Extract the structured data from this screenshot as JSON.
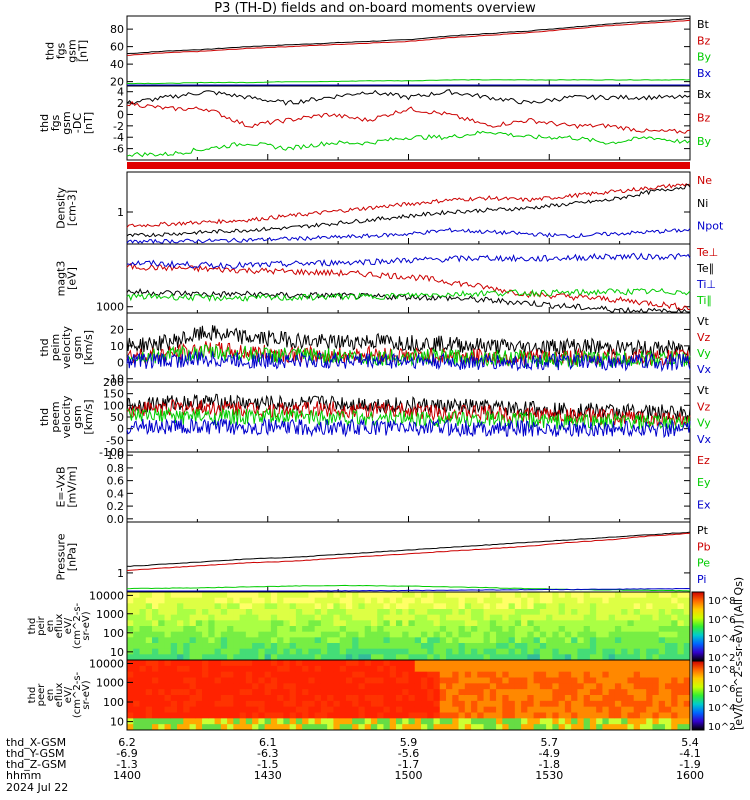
{
  "title": "P3 (TH-D) fields and on-board moments overview",
  "chart_data": {
    "type": "line",
    "xaxis": {
      "rows": [
        {
          "name": "thd_X-GSM",
          "values": [
            "6.2",
            "6.1",
            "5.9",
            "5.7",
            "5.4"
          ]
        },
        {
          "name": "thd_Y-GSM",
          "values": [
            "-6.9",
            "-6.3",
            "-5.6",
            "-4.9",
            "-4.1"
          ]
        },
        {
          "name": "thd_Z-GSM",
          "values": [
            "-1.3",
            "-1.5",
            "-1.7",
            "-1.8",
            "-1.9"
          ]
        },
        {
          "name": "hhmm",
          "values": [
            "1400",
            "1430",
            "1500",
            "1530",
            "1600"
          ]
        }
      ],
      "date": "2024 Jul 22"
    },
    "panels": [
      {
        "id": "fgs-gsm-mag",
        "ylabel": [
          "thd",
          "fgs",
          "gsm",
          "[nT]"
        ],
        "yticks": [
          "20",
          "40",
          "60",
          "80"
        ],
        "ylim": [
          15,
          95
        ],
        "series": [
          {
            "name": "Bt",
            "color": "#000000",
            "values": [
              52,
              55,
              57,
              60,
              62,
              64,
              66,
              68,
              72,
              75,
              78,
              82,
              86,
              89,
              92
            ]
          },
          {
            "name": "Bz",
            "color": "#cc0000",
            "values": [
              50,
              53,
              55,
              58,
              60,
              62,
              64,
              66,
              70,
              73,
              76,
              80,
              84,
              87,
              90
            ]
          },
          {
            "name": "By",
            "color": "#00cc00",
            "values": [
              18,
              18,
              19,
              19,
              20,
              20,
              21,
              21,
              22,
              22,
              22,
              22,
              22,
              22,
              22
            ]
          },
          {
            "name": "Bx",
            "color": "#0000cc",
            "values": [
              14,
              14,
              14,
              14,
              14,
              14,
              14,
              14,
              14,
              14,
              14,
              14,
              14,
              14,
              14
            ]
          }
        ]
      },
      {
        "id": "fgs-gsm-dc",
        "ylabel": [
          "thd",
          "fgs",
          "gsm",
          "-DC",
          "[nT]"
        ],
        "yticks": [
          "-6",
          "-4",
          "-2",
          "0",
          "2",
          "4"
        ],
        "ylim": [
          -8,
          5
        ],
        "series": [
          {
            "name": "Bx",
            "color": "#000000",
            "values": [
              2,
              3,
              4,
              3,
              2,
              3,
              4,
              3,
              4,
              3,
              2,
              3,
              3,
              3,
              3
            ]
          },
          {
            "name": "Bz",
            "color": "#cc0000",
            "values": [
              2,
              1,
              1,
              -2,
              -1,
              0,
              -1,
              1,
              0,
              -2,
              -1,
              -2,
              -2,
              -3,
              -3
            ]
          },
          {
            "name": "By",
            "color": "#00cc00",
            "values": [
              -7,
              -7,
              -6,
              -5,
              -6,
              -5,
              -5,
              -4,
              -4,
              -3,
              -4,
              -4,
              -5,
              -4,
              -5
            ]
          }
        ]
      },
      {
        "id": "density",
        "ylabel": [
          "Density",
          "[cm-3]"
        ],
        "yticks": [
          "1"
        ],
        "ylim": [
          0.2,
          2
        ],
        "series": [
          {
            "name": "Ne",
            "color": "#cc0000",
            "values": [
              0.65,
              0.7,
              0.75,
              0.8,
              0.9,
              1.0,
              1.1,
              1.2,
              1.3,
              1.35,
              1.3,
              1.4,
              1.5,
              1.6,
              1.7
            ]
          },
          {
            "name": "Ni",
            "color": "#000000",
            "values": [
              0.4,
              0.45,
              0.5,
              0.55,
              0.6,
              0.7,
              0.8,
              0.9,
              1.0,
              1.05,
              1.1,
              1.2,
              1.3,
              1.5,
              1.65
            ]
          },
          {
            "name": "Npot",
            "color": "#0000cc",
            "values": [
              0.25,
              0.27,
              0.28,
              0.3,
              0.33,
              0.36,
              0.4,
              0.45,
              0.55,
              0.5,
              0.45,
              0.4,
              0.45,
              0.5,
              0.55
            ]
          }
        ]
      },
      {
        "id": "temperature",
        "ylabel": [
          "magt3",
          "[eV]"
        ],
        "yticks": [
          "1000"
        ],
        "ylim": [
          500,
          6000
        ],
        "series": [
          {
            "name": "Te⊥",
            "color": "#cc0000",
            "values": [
              4200,
              4100,
              4000,
              3900,
              3800,
              3700,
              3600,
              3400,
              3000,
              2500,
              2000,
              1800,
              1600,
              1300,
              900
            ]
          },
          {
            "name": "Te∥",
            "color": "#000000",
            "values": [
              2200,
              2100,
              2000,
              2000,
              1900,
              1900,
              1800,
              1800,
              1700,
              1500,
              1300,
              1000,
              800,
              650,
              550
            ]
          },
          {
            "name": "Ti⊥",
            "color": "#0000cc",
            "values": [
              4500,
              4400,
              4300,
              4300,
              4400,
              4500,
              4600,
              4700,
              4800,
              4900,
              4800,
              4900,
              5000,
              5000,
              5000
            ]
          },
          {
            "name": "Ti∥",
            "color": "#00cc00",
            "values": [
              1800,
              1800,
              1700,
              1700,
              1700,
              1800,
              1800,
              1900,
              2000,
              2100,
              2100,
              2100,
              2200,
              2200,
              2200
            ]
          }
        ]
      },
      {
        "id": "peim-velocity",
        "ylabel": [
          "thd",
          "peim",
          "velocity",
          "gsm",
          "[km/s]"
        ],
        "yticks": [
          "-10",
          "0",
          "10",
          "20"
        ],
        "ylim": [
          -12,
          30
        ],
        "series": [
          {
            "name": "Vt",
            "color": "#000000",
            "values": [
              10,
              12,
              18,
              15,
              14,
              12,
              13,
              12,
              11,
              10,
              9,
              10,
              9,
              8,
              9
            ]
          },
          {
            "name": "Vz",
            "color": "#cc0000",
            "values": [
              4,
              5,
              8,
              6,
              5,
              4,
              5,
              4,
              4,
              3,
              3,
              3,
              3,
              3,
              3
            ]
          },
          {
            "name": "Vy",
            "color": "#00cc00",
            "values": [
              3,
              4,
              6,
              5,
              4,
              4,
              3,
              3,
              3,
              3,
              2,
              2,
              2,
              2,
              2
            ]
          },
          {
            "name": "Vx",
            "color": "#0000cc",
            "values": [
              1,
              1,
              2,
              1,
              1,
              1,
              1,
              1,
              0,
              0,
              0,
              0,
              0,
              0,
              0
            ]
          }
        ]
      },
      {
        "id": "peem-velocity",
        "ylabel": [
          "thd",
          "peem",
          "velocity",
          "gsm",
          "[km/s]"
        ],
        "yticks": [
          "-100",
          "-50",
          "0",
          "50",
          "100",
          "150",
          "200"
        ],
        "ylim": [
          -100,
          200
        ],
        "series": [
          {
            "name": "Vt",
            "color": "#000000",
            "values": [
              100,
              110,
              115,
              110,
              105,
              110,
              105,
              100,
              95,
              90,
              85,
              80,
              75,
              70,
              65
            ]
          },
          {
            "name": "Vz",
            "color": "#cc0000",
            "values": [
              80,
              90,
              90,
              85,
              80,
              85,
              80,
              75,
              70,
              65,
              60,
              55,
              50,
              45,
              40
            ]
          },
          {
            "name": "Vy",
            "color": "#00cc00",
            "values": [
              50,
              55,
              50,
              50,
              50,
              50,
              45,
              45,
              40,
              40,
              35,
              30,
              30,
              25,
              20
            ]
          },
          {
            "name": "Vx",
            "color": "#0000cc",
            "values": [
              10,
              10,
              5,
              10,
              5,
              5,
              5,
              5,
              5,
              0,
              0,
              0,
              0,
              0,
              0
            ]
          }
        ]
      },
      {
        "id": "efield",
        "ylabel": [
          "E=-VxB",
          "[mV/m]"
        ],
        "yticks": [
          "0.0",
          "0.2",
          "0.4",
          "0.6",
          "0.8",
          "1.0"
        ],
        "ylim": [
          -0.05,
          1.05
        ],
        "series": [
          {
            "name": "Ez",
            "color": "#cc0000",
            "values": []
          },
          {
            "name": "Ey",
            "color": "#00cc00",
            "values": []
          },
          {
            "name": "Ex",
            "color": "#0000cc",
            "values": []
          }
        ]
      },
      {
        "id": "pressure",
        "ylabel": [
          "Pressure",
          "[nPa]"
        ],
        "yticks": [
          "1"
        ],
        "ylim": [
          0.25,
          3
        ],
        "series": [
          {
            "name": "Pt",
            "color": "#000000",
            "values": [
              1.25,
              1.35,
              1.45,
              1.55,
              1.6,
              1.7,
              1.8,
              1.9,
              2.0,
              2.1,
              2.2,
              2.3,
              2.4,
              2.5,
              2.6
            ]
          },
          {
            "name": "Pb",
            "color": "#cc0000",
            "values": [
              1.1,
              1.2,
              1.3,
              1.4,
              1.45,
              1.55,
              1.65,
              1.75,
              1.85,
              1.95,
              2.05,
              2.2,
              2.3,
              2.45,
              2.55
            ]
          },
          {
            "name": "Pe",
            "color": "#00cc00",
            "values": [
              0.38,
              0.4,
              0.42,
              0.45,
              0.48,
              0.5,
              0.5,
              0.48,
              0.45,
              0.42,
              0.38,
              0.35,
              0.33,
              0.32,
              0.3
            ]
          },
          {
            "name": "Pi",
            "color": "#0000cc",
            "values": [
              0.27,
              0.27,
              0.27,
              0.28,
              0.28,
              0.29,
              0.3,
              0.31,
              0.32,
              0.33,
              0.34,
              0.35,
              0.36,
              0.37,
              0.38
            ]
          }
        ]
      }
    ],
    "spectrograms": [
      {
        "id": "peir-en-eflux",
        "ylabel": [
          "thd",
          "peir",
          "en",
          "eflux",
          "eV/",
          "(cm^2-s-",
          "sr-eV)"
        ],
        "yticks": [
          "10",
          "100",
          "1000",
          "10000"
        ]
      },
      {
        "id": "peer-en-eflux",
        "ylabel": [
          "thd",
          "peer",
          "en",
          "eflux",
          "eV/",
          "(cm^2-s-",
          "sr-eV)"
        ],
        "yticks": [
          "10",
          "100",
          "1000",
          "10000"
        ]
      }
    ],
    "colorbar": {
      "label": "[eV/(cm^2-s-sr-eV)] (All Qs)",
      "ticks": [
        "10^2",
        "10^4",
        "10^6",
        "10^8"
      ]
    }
  }
}
